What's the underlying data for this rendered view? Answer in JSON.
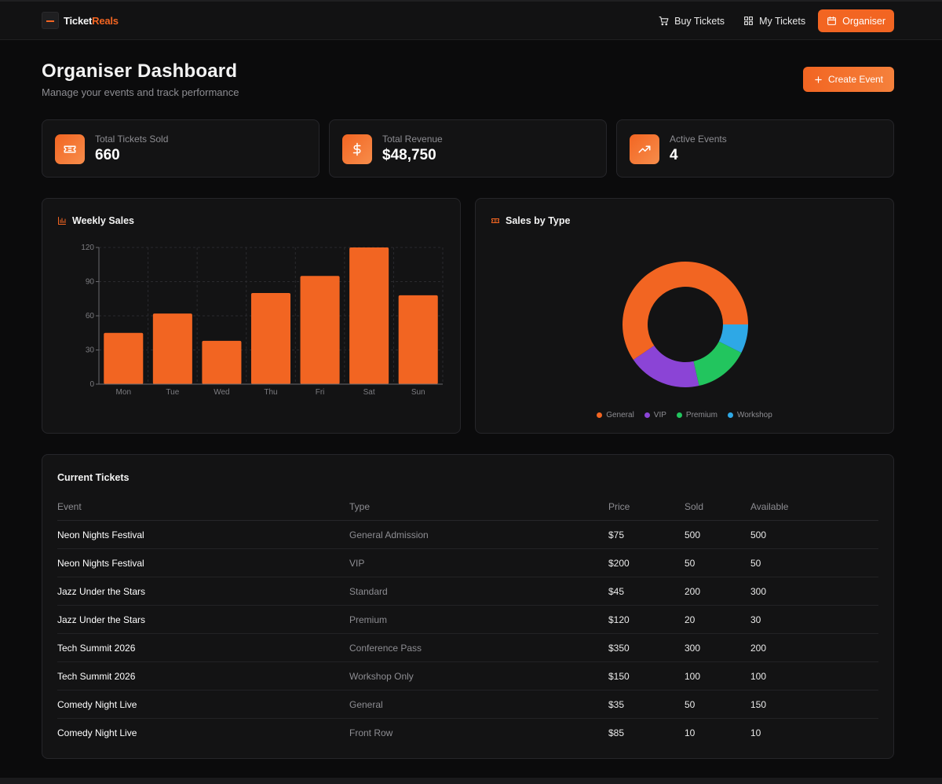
{
  "app": {
    "logo_part1": "Ticket",
    "logo_part2": "Reals"
  },
  "nav": {
    "buy_tickets": "Buy Tickets",
    "my_tickets": "My Tickets",
    "organiser": "Organiser"
  },
  "header": {
    "title": "Organiser Dashboard",
    "subtitle": "Manage your events and track performance",
    "create_button": "Create Event"
  },
  "stats": [
    {
      "label": "Total Tickets Sold",
      "value": "660"
    },
    {
      "label": "Total Revenue",
      "value": "$48,750"
    },
    {
      "label": "Active Events",
      "value": "4"
    }
  ],
  "weekly_sales": {
    "title": "Weekly Sales"
  },
  "sales_by_type": {
    "title": "Sales by Type"
  },
  "chart_data": [
    {
      "type": "bar",
      "title": "Weekly Sales",
      "categories": [
        "Mon",
        "Tue",
        "Wed",
        "Thu",
        "Fri",
        "Sat",
        "Sun"
      ],
      "values": [
        45,
        62,
        38,
        80,
        95,
        120,
        78
      ],
      "ylim": [
        0,
        120
      ],
      "yticks": [
        0,
        30,
        60,
        90,
        120
      ],
      "grid": true,
      "color": "#f26522"
    },
    {
      "type": "pie",
      "title": "Sales by Type",
      "labels": [
        "General",
        "VIP",
        "Premium",
        "Workshop"
      ],
      "values": [
        360,
        115,
        85,
        45
      ],
      "colors": [
        "#f26522",
        "#8b44d6",
        "#22c55e",
        "#2ea8e6"
      ],
      "donut": true,
      "legend": "bottom"
    }
  ],
  "table": {
    "title": "Current Tickets",
    "headers": [
      "Event",
      "Type",
      "Price",
      "Sold",
      "Available"
    ],
    "rows": [
      [
        "Neon Nights Festival",
        "General Admission",
        "$75",
        "500",
        "500"
      ],
      [
        "Neon Nights Festival",
        "VIP",
        "$200",
        "50",
        "50"
      ],
      [
        "Jazz Under the Stars",
        "Standard",
        "$45",
        "200",
        "300"
      ],
      [
        "Jazz Under the Stars",
        "Premium",
        "$120",
        "20",
        "30"
      ],
      [
        "Tech Summit 2026",
        "Conference Pass",
        "$350",
        "300",
        "200"
      ],
      [
        "Tech Summit 2026",
        "Workshop Only",
        "$150",
        "100",
        "100"
      ],
      [
        "Comedy Night Live",
        "General",
        "$35",
        "50",
        "150"
      ],
      [
        "Comedy Night Live",
        "Front Row",
        "$85",
        "10",
        "10"
      ]
    ]
  }
}
